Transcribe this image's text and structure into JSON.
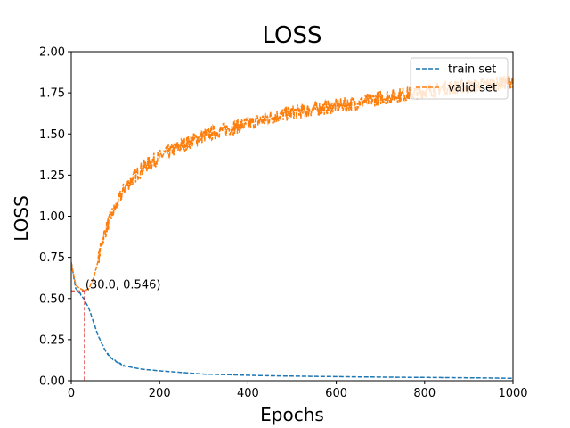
{
  "chart_data": {
    "type": "line",
    "title": "LOSS",
    "xlabel": "Epochs",
    "ylabel": "LOSS",
    "xlim": [
      0,
      1000
    ],
    "ylim": [
      0,
      2.0
    ],
    "xticks": [
      0,
      200,
      400,
      600,
      800,
      1000
    ],
    "xtick_labels": [
      "0",
      "200",
      "400",
      "600",
      "800",
      "1000"
    ],
    "yticks": [
      0,
      0.25,
      0.5,
      0.75,
      1.0,
      1.25,
      1.5,
      1.75,
      2.0
    ],
    "ytick_labels": [
      "0.00",
      "0.25",
      "0.50",
      "0.75",
      "1.00",
      "1.25",
      "1.50",
      "1.75",
      "2.00"
    ],
    "grid": false,
    "legend_position": "top-right",
    "series": [
      {
        "name": "train set",
        "color": "#1f77b4",
        "line_style": "dashed",
        "x": [
          0,
          10,
          20,
          30,
          40,
          50,
          60,
          70,
          80,
          90,
          100,
          120,
          140,
          160,
          180,
          200,
          250,
          300,
          350,
          400,
          450,
          500,
          600,
          700,
          800,
          900,
          1000
        ],
        "y": [
          0.72,
          0.56,
          0.53,
          0.49,
          0.44,
          0.36,
          0.28,
          0.22,
          0.17,
          0.14,
          0.12,
          0.09,
          0.08,
          0.07,
          0.065,
          0.06,
          0.05,
          0.04,
          0.037,
          0.033,
          0.03,
          0.028,
          0.025,
          0.022,
          0.02,
          0.018,
          0.015
        ]
      },
      {
        "name": "valid set",
        "color": "#ff7f0e",
        "line_style": "dashed",
        "x": [
          0,
          10,
          20,
          30,
          40,
          50,
          60,
          70,
          80,
          90,
          100,
          120,
          140,
          160,
          180,
          200,
          250,
          300,
          350,
          400,
          450,
          500,
          550,
          600,
          650,
          700,
          750,
          800,
          850,
          900,
          950,
          1000
        ],
        "y": [
          0.72,
          0.58,
          0.56,
          0.546,
          0.56,
          0.62,
          0.72,
          0.85,
          0.93,
          1.0,
          1.05,
          1.17,
          1.23,
          1.29,
          1.33,
          1.36,
          1.43,
          1.49,
          1.53,
          1.56,
          1.6,
          1.63,
          1.65,
          1.67,
          1.69,
          1.72,
          1.74,
          1.76,
          1.78,
          1.79,
          1.8,
          1.82
        ]
      }
    ],
    "annotation": {
      "text": "(30.0, 0.546)",
      "x": 30,
      "y": 0.546,
      "marker_color": "#d62728"
    }
  }
}
